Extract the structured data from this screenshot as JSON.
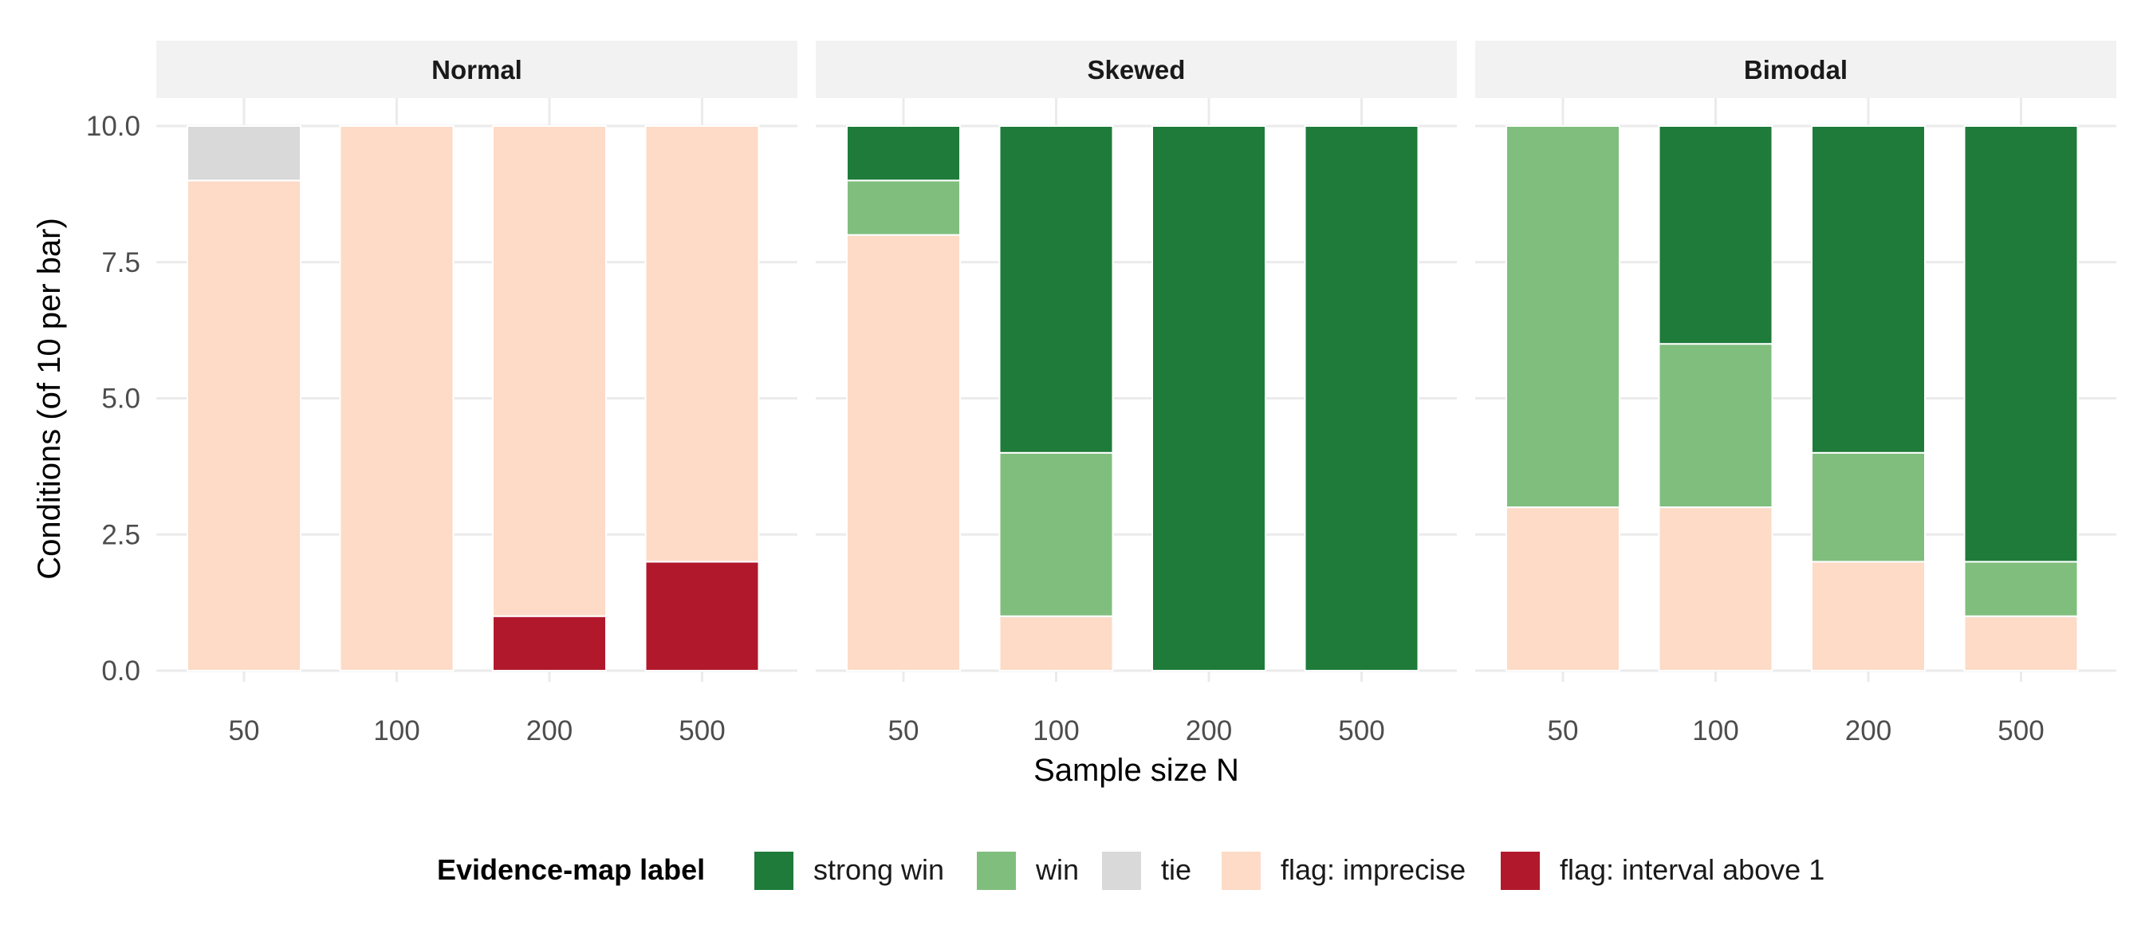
{
  "chart_data": {
    "type": "bar",
    "stacked": true,
    "facets": [
      "Normal",
      "Skewed",
      "Bimodal"
    ],
    "categories": [
      "50",
      "100",
      "200",
      "500"
    ],
    "xlabel": "Sample size N",
    "ylabel": "Conditions (of 10 per bar)",
    "ylim": [
      0,
      10
    ],
    "yticks": [
      "0.0",
      "2.5",
      "5.0",
      "7.5",
      "10.0"
    ],
    "ytick_values": [
      0,
      2.5,
      5,
      7.5,
      10
    ],
    "grid": true,
    "legend": {
      "title": "Evidence-map label",
      "placement": "bottom",
      "entries": [
        "strong win",
        "win",
        "tie",
        "flag: imprecise",
        "flag: interval above 1"
      ]
    },
    "stack_order": [
      "flag: interval above 1",
      "flag: imprecise",
      "tie",
      "win",
      "strong win"
    ],
    "colors": {
      "strong win": "#1e7b3a",
      "win": "#80be7d",
      "tie": "#d9d9d9",
      "flag: imprecise": "#fddbc7",
      "flag: interval above 1": "#b2182b"
    },
    "series_by_facet": {
      "Normal": {
        "strong win": [
          0,
          0,
          0,
          0
        ],
        "win": [
          0,
          0,
          0,
          0
        ],
        "tie": [
          1,
          0,
          0,
          0
        ],
        "flag: imprecise": [
          9,
          10,
          9,
          8
        ],
        "flag: interval above 1": [
          0,
          0,
          1,
          2
        ]
      },
      "Skewed": {
        "strong win": [
          1,
          6,
          10,
          10
        ],
        "win": [
          1,
          3,
          0,
          0
        ],
        "tie": [
          0,
          0,
          0,
          0
        ],
        "flag: imprecise": [
          8,
          1,
          0,
          0
        ],
        "flag: interval above 1": [
          0,
          0,
          0,
          0
        ]
      },
      "Bimodal": {
        "strong win": [
          0,
          4,
          6,
          8
        ],
        "win": [
          7,
          3,
          2,
          1
        ],
        "tie": [
          0,
          0,
          0,
          0
        ],
        "flag: imprecise": [
          3,
          3,
          2,
          1
        ],
        "flag: interval above 1": [
          0,
          0,
          0,
          0
        ]
      }
    }
  }
}
